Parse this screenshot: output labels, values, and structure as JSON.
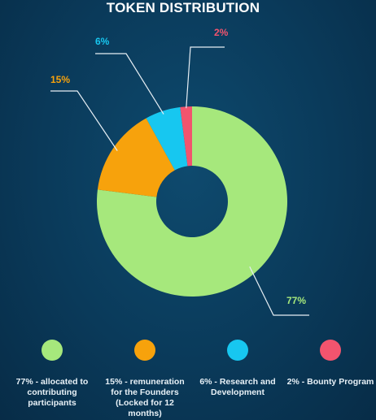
{
  "chart_data": {
    "type": "pie",
    "title": "TOKEN DISTRIBUTION",
    "slices": [
      {
        "value": 77,
        "label": "77%",
        "legend": "77% - allocated to contributing participants",
        "color": "#a6e87c"
      },
      {
        "value": 15,
        "label": "15%",
        "legend": "15% - remuneration for the Founders (Locked for 12 months)",
        "color": "#f7a20c"
      },
      {
        "value": 6,
        "label": "6%",
        "legend": "6% - Research and Development",
        "color": "#17c7f0"
      },
      {
        "value": 2,
        "label": "2%",
        "legend": "2% - Bounty Program",
        "color": "#f2546e"
      }
    ],
    "legend_position": "bottom"
  }
}
